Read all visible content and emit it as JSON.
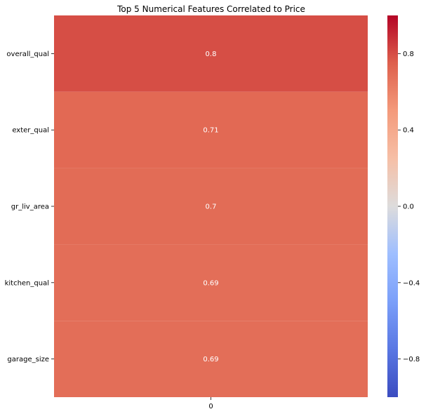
{
  "chart_data": {
    "type": "heatmap",
    "title": "Top 5 Numerical Features Correlated to Price",
    "rows": [
      "overall_qual",
      "exter_qual",
      "gr_liv_area",
      "kitchen_qual",
      "garage_size"
    ],
    "columns": [
      "0"
    ],
    "values": [
      0.8,
      0.71,
      0.7,
      0.69,
      0.69
    ],
    "cell_labels": [
      "0.8",
      "0.71",
      "0.7",
      "0.69",
      "0.69"
    ],
    "colormap": "coolwarm",
    "vmin": -1.0,
    "vmax": 1.0,
    "colorbar": {
      "ticks": [
        0.8,
        0.4,
        0.0,
        -0.4,
        -0.8
      ],
      "tick_labels": [
        "0.8",
        "0.4",
        "0.0",
        "−0.4",
        "−0.8"
      ]
    }
  }
}
